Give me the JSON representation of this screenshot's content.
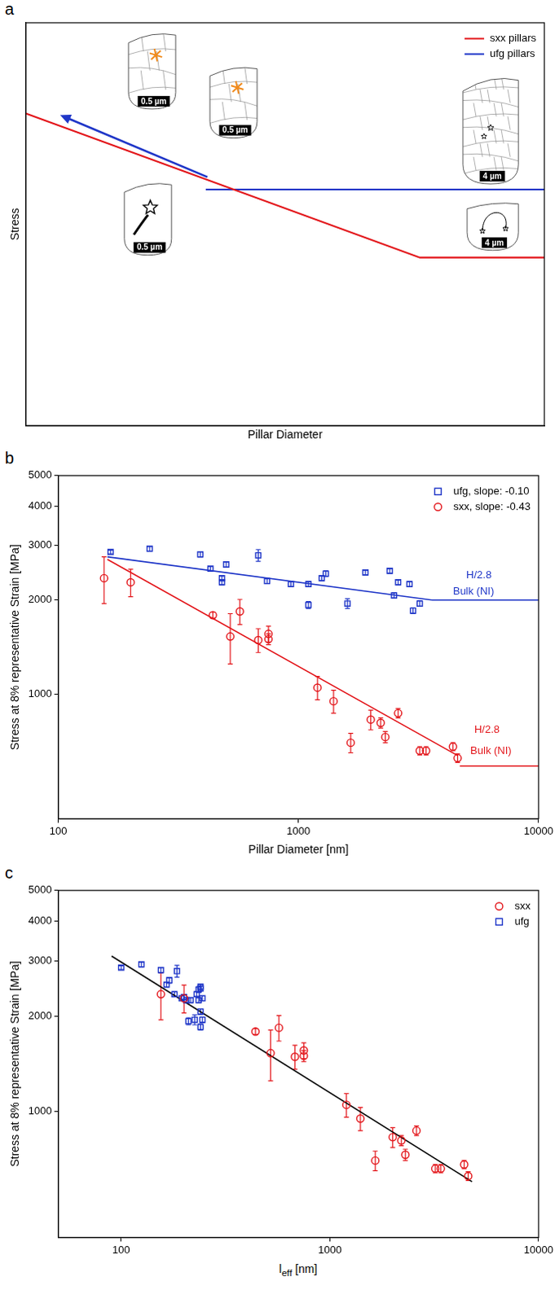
{
  "chart_data": [
    {
      "label": "a",
      "type": "line",
      "xlabel": "Pillar Diameter",
      "ylabel": "Stress",
      "xlim": [
        0,
        10
      ],
      "ylim": [
        0,
        10
      ],
      "tick_labels": false,
      "grid": false,
      "legend": "upper right",
      "series": [
        {
          "name": "sxx pillars",
          "color": "#e3161b",
          "x": [
            0,
            7.6,
            10
          ],
          "values": [
            7.75,
            4.17,
            4.17
          ]
        },
        {
          "name": "ufg pillars",
          "color": "#1f36c8",
          "x": [
            3.47,
            10
          ],
          "values": [
            5.86,
            5.86
          ]
        }
      ],
      "arrow": {
        "x": [
          3.5,
          0.66
        ],
        "y": [
          6.17,
          7.71
        ],
        "color": "#1f36c8"
      },
      "insets": [
        {
          "series": "ufg pillars",
          "scale_bar": "0.5 µm"
        },
        {
          "series": "ufg pillars",
          "scale_bar": "0.5 µm"
        },
        {
          "series": "sxx pillars",
          "scale_bar": "0.5 µm"
        },
        {
          "series": "ufg pillars",
          "scale_bar": "4 µm"
        },
        {
          "series": "sxx pillars",
          "scale_bar": "4 µm"
        }
      ]
    },
    {
      "label": "b",
      "type": "scatter",
      "log": true,
      "grid": false,
      "legend": "upper right",
      "xlabel": "Pillar Diameter [nm]",
      "ylabel": "Stress at 8% representative Strain [MPa]",
      "xlim": [
        100,
        10000
      ],
      "xticks": [
        100,
        1000,
        10000
      ],
      "ylim": [
        400,
        5000
      ],
      "yticks": [
        1000,
        2000,
        3000,
        4000,
        5000
      ],
      "series": [
        {
          "name": "ufg, slope: -0.10",
          "color": "#1f36c8",
          "marker": "square",
          "x": [
            165,
            240,
            390,
            430,
            480,
            480,
            500,
            680,
            740,
            930,
            1100,
            1100,
            1250,
            1300,
            1600,
            1900,
            2400,
            2500,
            2600,
            2900,
            3000,
            3200
          ],
          "values": [
            2850,
            2920,
            2800,
            2520,
            2280,
            2350,
            2600,
            2780,
            2300,
            2250,
            1930,
            2250,
            2350,
            2430,
            1950,
            2450,
            2480,
            2070,
            2280,
            2250,
            1850,
            1950
          ],
          "errors": [
            40,
            50,
            50,
            40,
            40,
            40,
            50,
            120,
            40,
            40,
            50,
            40,
            40,
            50,
            70,
            40,
            40,
            40,
            40,
            40,
            40,
            40
          ]
        },
        {
          "name": "sxx, slope: -0.43",
          "color": "#e3161b",
          "marker": "circle",
          "x": [
            155,
            200,
            440,
            520,
            570,
            680,
            750,
            750,
            1200,
            1400,
            1650,
            2000,
            2200,
            2300,
            2600,
            3200,
            3400,
            4400,
            4600
          ],
          "values": [
            2350,
            2280,
            1790,
            1530,
            1840,
            1490,
            1560,
            1500,
            1050,
            950,
            700,
            830,
            810,
            730,
            870,
            660,
            660,
            680,
            625
          ],
          "errors": [
            400,
            230,
            40,
            280,
            170,
            130,
            90,
            60,
            90,
            80,
            50,
            60,
            30,
            30,
            30,
            20,
            20,
            20,
            20
          ]
        }
      ],
      "lines": [
        {
          "color": "#1f36c8",
          "x": [
            160,
            3600
          ],
          "values": [
            2750,
            2000
          ]
        },
        {
          "color": "#1f36c8",
          "x": [
            3600,
            10000
          ],
          "values": [
            2000,
            2000
          ]
        },
        {
          "color": "#e3161b",
          "x": [
            160,
            4600
          ],
          "values": [
            2700,
            637
          ]
        },
        {
          "color": "#e3161b",
          "x": [
            4700,
            10000
          ],
          "values": [
            590,
            590
          ]
        }
      ],
      "annotations": [
        {
          "text": "H/2.8",
          "x": 5000,
          "y": 2400,
          "color": "#1f36c8"
        },
        {
          "text": "Bulk (NI)",
          "x": 4400,
          "y": 2130,
          "color": "#1f36c8"
        },
        {
          "text": "H/2.8",
          "x": 5400,
          "y": 770,
          "color": "#e3161b"
        },
        {
          "text": "Bulk (NI)",
          "x": 5200,
          "y": 660,
          "color": "#e3161b"
        }
      ]
    },
    {
      "label": "c",
      "type": "scatter",
      "log": true,
      "grid": false,
      "legend": "upper right",
      "xlabel": {
        "text": "l",
        "sub": "eff",
        "after": " [nm]"
      },
      "ylabel": "Stress at 8% representative Strain [MPa]",
      "xlim": [
        50,
        10000
      ],
      "xticks": [
        100,
        1000,
        10000
      ],
      "ylim": [
        400,
        5000
      ],
      "yticks": [
        1000,
        2000,
        3000,
        4000,
        5000
      ],
      "series": [
        {
          "name": "sxx",
          "color": "#e3161b",
          "marker": "circle",
          "x": [
            155,
            200,
            440,
            520,
            570,
            680,
            750,
            750,
            1200,
            1400,
            1650,
            2000,
            2200,
            2300,
            2600,
            3200,
            3400,
            4400,
            4600
          ],
          "values": [
            2350,
            2280,
            1790,
            1530,
            1840,
            1490,
            1560,
            1500,
            1050,
            950,
            700,
            830,
            810,
            730,
            870,
            660,
            660,
            680,
            625
          ],
          "errors": [
            400,
            230,
            40,
            280,
            170,
            130,
            90,
            60,
            90,
            80,
            50,
            60,
            30,
            30,
            30,
            20,
            20,
            20,
            20
          ]
        },
        {
          "name": "ufg",
          "color": "#1f36c8",
          "marker": "square",
          "x": [
            100,
            125,
            155,
            165,
            195,
            180,
            170,
            185,
            200,
            215,
            210,
            235,
            230,
            235,
            225,
            240,
            240,
            240,
            245,
            205,
            240,
            245
          ],
          "values": [
            2850,
            2920,
            2800,
            2520,
            2280,
            2350,
            2600,
            2780,
            2300,
            2250,
            1930,
            2250,
            2350,
            2430,
            1950,
            2450,
            2480,
            2070,
            2280,
            2250,
            1850,
            1950
          ],
          "errors": [
            40,
            50,
            50,
            40,
            40,
            40,
            50,
            120,
            40,
            40,
            50,
            40,
            40,
            50,
            70,
            40,
            40,
            40,
            40,
            40,
            40,
            40
          ]
        }
      ],
      "lines": [
        {
          "color": "#000000",
          "x": [
            90,
            4800
          ],
          "values": [
            3100,
            600
          ]
        }
      ]
    }
  ]
}
